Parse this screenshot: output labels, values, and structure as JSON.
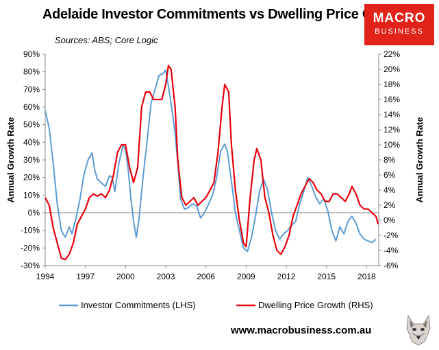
{
  "header": {
    "title": "Adelaide Investor Commitments vs Dwelling Price Growth",
    "subtitle": "Sources: ABS; Core Logic",
    "logo_line1": "MACRO",
    "logo_line2": "BUSINESS",
    "website": "www.macrobusiness.com.au"
  },
  "colors": {
    "lhs": "#5b9bd5",
    "rhs": "#e8000b",
    "brand": "#e2231a"
  },
  "chart_data": {
    "type": "line",
    "title": "Adelaide Investor Commitments vs Dwelling Price Growth",
    "ylabel": "Annual Growth Rate",
    "y2label": "Annual Growth Rate",
    "xlim": [
      1994,
      2018.9
    ],
    "ylim": [
      -30,
      90
    ],
    "y2lim": [
      -6,
      22
    ],
    "xticks": [
      "1994",
      "1997",
      "2000",
      "2003",
      "2006",
      "2009",
      "2012",
      "2015",
      "2018"
    ],
    "yticks": [
      "-30%",
      "-20%",
      "-10%",
      "0%",
      "10%",
      "20%",
      "30%",
      "40%",
      "50%",
      "60%",
      "70%",
      "80%",
      "90%"
    ],
    "y2ticks": [
      "-6%",
      "-4%",
      "-2%",
      "0%",
      "2%",
      "4%",
      "6%",
      "8%",
      "10%",
      "12%",
      "14%",
      "16%",
      "18%",
      "20%",
      "22%"
    ],
    "grid": false,
    "legend": "bottom",
    "series": [
      {
        "name": "Investor Commitments (LHS)",
        "axis": "left",
        "color": "#5b9bd5",
        "points": [
          [
            1994.0,
            58
          ],
          [
            1994.3,
            48
          ],
          [
            1994.6,
            28
          ],
          [
            1994.9,
            5
          ],
          [
            1995.2,
            -10
          ],
          [
            1995.5,
            -14
          ],
          [
            1995.8,
            -8
          ],
          [
            1996.0,
            -12
          ],
          [
            1996.3,
            -3
          ],
          [
            1996.6,
            8
          ],
          [
            1996.9,
            22
          ],
          [
            1997.2,
            30
          ],
          [
            1997.5,
            34
          ],
          [
            1997.7,
            24
          ],
          [
            1997.9,
            19
          ],
          [
            1998.2,
            17
          ],
          [
            1998.5,
            15
          ],
          [
            1998.8,
            21
          ],
          [
            1999.0,
            20
          ],
          [
            1999.2,
            12
          ],
          [
            1999.5,
            28
          ],
          [
            1999.8,
            38
          ],
          [
            2000.0,
            36
          ],
          [
            2000.2,
            24
          ],
          [
            2000.4,
            8
          ],
          [
            2000.6,
            -5
          ],
          [
            2000.8,
            -14
          ],
          [
            2001.0,
            -4
          ],
          [
            2001.3,
            20
          ],
          [
            2001.6,
            40
          ],
          [
            2001.9,
            62
          ],
          [
            2002.2,
            70
          ],
          [
            2002.5,
            78
          ],
          [
            2002.8,
            79
          ],
          [
            2003.0,
            81
          ],
          [
            2003.2,
            72
          ],
          [
            2003.4,
            62
          ],
          [
            2003.7,
            45
          ],
          [
            2003.9,
            28
          ],
          [
            2004.1,
            8
          ],
          [
            2004.4,
            2
          ],
          [
            2004.7,
            3
          ],
          [
            2005.0,
            5
          ],
          [
            2005.3,
            4
          ],
          [
            2005.6,
            -3
          ],
          [
            2005.9,
            0
          ],
          [
            2006.2,
            5
          ],
          [
            2006.5,
            10
          ],
          [
            2006.8,
            20
          ],
          [
            2007.1,
            35
          ],
          [
            2007.4,
            39
          ],
          [
            2007.6,
            35
          ],
          [
            2007.9,
            18
          ],
          [
            2008.2,
            0
          ],
          [
            2008.5,
            -10
          ],
          [
            2008.8,
            -20
          ],
          [
            2009.1,
            -22
          ],
          [
            2009.4,
            -14
          ],
          [
            2009.7,
            -2
          ],
          [
            2010.0,
            12
          ],
          [
            2010.3,
            19
          ],
          [
            2010.6,
            13
          ],
          [
            2010.9,
            0
          ],
          [
            2011.2,
            -10
          ],
          [
            2011.5,
            -15
          ],
          [
            2011.8,
            -12
          ],
          [
            2012.1,
            -10
          ],
          [
            2012.4,
            -7
          ],
          [
            2012.7,
            -5
          ],
          [
            2013.0,
            5
          ],
          [
            2013.3,
            12
          ],
          [
            2013.6,
            20
          ],
          [
            2013.9,
            15
          ],
          [
            2014.2,
            9
          ],
          [
            2014.5,
            5
          ],
          [
            2014.8,
            8
          ],
          [
            2015.1,
            1
          ],
          [
            2015.4,
            -10
          ],
          [
            2015.7,
            -16
          ],
          [
            2016.0,
            -8
          ],
          [
            2016.3,
            -12
          ],
          [
            2016.6,
            -5
          ],
          [
            2016.9,
            -2
          ],
          [
            2017.2,
            -6
          ],
          [
            2017.5,
            -12
          ],
          [
            2017.8,
            -15
          ],
          [
            2018.1,
            -16
          ],
          [
            2018.4,
            -17
          ],
          [
            2018.7,
            -15
          ]
        ]
      },
      {
        "name": "Dwelling Price Growth (RHS)",
        "axis": "right",
        "color": "#e8000b",
        "points": [
          [
            1994.0,
            3
          ],
          [
            1994.3,
            2
          ],
          [
            1994.6,
            -1
          ],
          [
            1994.9,
            -3
          ],
          [
            1995.2,
            -5
          ],
          [
            1995.5,
            -5.2
          ],
          [
            1995.8,
            -4.5
          ],
          [
            1996.1,
            -3
          ],
          [
            1996.4,
            -0.5
          ],
          [
            1996.7,
            0.5
          ],
          [
            1997.0,
            1.5
          ],
          [
            1997.3,
            3
          ],
          [
            1997.6,
            3.5
          ],
          [
            1997.9,
            3.2
          ],
          [
            1998.2,
            3.5
          ],
          [
            1998.5,
            3
          ],
          [
            1998.8,
            4
          ],
          [
            1999.1,
            6
          ],
          [
            1999.4,
            9
          ],
          [
            1999.7,
            10
          ],
          [
            2000.0,
            10
          ],
          [
            2000.3,
            7
          ],
          [
            2000.6,
            5
          ],
          [
            2000.9,
            7
          ],
          [
            2001.2,
            15
          ],
          [
            2001.5,
            17
          ],
          [
            2001.8,
            17
          ],
          [
            2002.1,
            16
          ],
          [
            2002.4,
            16
          ],
          [
            2002.7,
            16
          ],
          [
            2003.0,
            18
          ],
          [
            2003.2,
            20.5
          ],
          [
            2003.4,
            20
          ],
          [
            2003.7,
            15
          ],
          [
            2003.9,
            8
          ],
          [
            2004.2,
            3
          ],
          [
            2004.5,
            2
          ],
          [
            2004.8,
            2.5
          ],
          [
            2005.1,
            3
          ],
          [
            2005.4,
            2
          ],
          [
            2005.7,
            2.5
          ],
          [
            2006.0,
            3
          ],
          [
            2006.3,
            4
          ],
          [
            2006.6,
            5
          ],
          [
            2006.9,
            9
          ],
          [
            2007.2,
            15
          ],
          [
            2007.4,
            18
          ],
          [
            2007.7,
            17
          ],
          [
            2007.9,
            10
          ],
          [
            2008.2,
            4
          ],
          [
            2008.5,
            0
          ],
          [
            2008.8,
            -3
          ],
          [
            2009.0,
            -3.5
          ],
          [
            2009.3,
            3
          ],
          [
            2009.6,
            8
          ],
          [
            2009.8,
            9.5
          ],
          [
            2010.1,
            8
          ],
          [
            2010.4,
            3
          ],
          [
            2010.7,
            1
          ],
          [
            2011.0,
            -2
          ],
          [
            2011.3,
            -4
          ],
          [
            2011.6,
            -4.5
          ],
          [
            2011.9,
            -3.5
          ],
          [
            2012.2,
            -2
          ],
          [
            2012.5,
            0.5
          ],
          [
            2012.8,
            2
          ],
          [
            2013.1,
            3.5
          ],
          [
            2013.4,
            4.5
          ],
          [
            2013.7,
            5.5
          ],
          [
            2014.0,
            5
          ],
          [
            2014.3,
            4
          ],
          [
            2014.6,
            3.5
          ],
          [
            2014.9,
            2.5
          ],
          [
            2015.2,
            2.5
          ],
          [
            2015.5,
            3.5
          ],
          [
            2015.8,
            3.5
          ],
          [
            2016.1,
            3
          ],
          [
            2016.4,
            2.5
          ],
          [
            2016.7,
            3.5
          ],
          [
            2016.9,
            4.5
          ],
          [
            2017.2,
            3.5
          ],
          [
            2017.5,
            2
          ],
          [
            2017.8,
            1.5
          ],
          [
            2018.1,
            1.5
          ],
          [
            2018.4,
            1
          ],
          [
            2018.7,
            0.5
          ],
          [
            2018.85,
            -0.5
          ]
        ]
      }
    ]
  }
}
